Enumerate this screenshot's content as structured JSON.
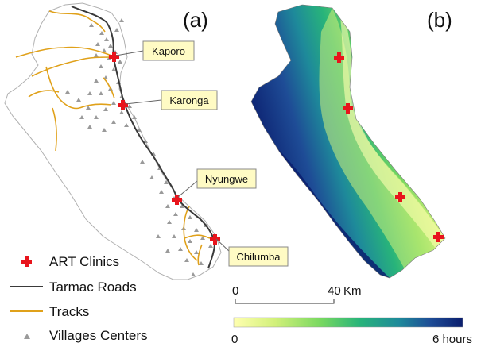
{
  "panels": {
    "a": {
      "label": "(a)"
    },
    "b": {
      "label": "(b)"
    }
  },
  "clinics": [
    "Kaporo",
    "Karonga",
    "Nyungwe",
    "Chilumba"
  ],
  "legend": {
    "clinics": "ART Clinics",
    "tarmac": "Tarmac Roads",
    "tracks": "Tracks",
    "villages": "Villages Centers"
  },
  "scale_bar": {
    "start": "0",
    "end": "40",
    "unit": "Km"
  },
  "colorbar": {
    "min_label": "0",
    "max_label": "6 hours",
    "min_value": 0,
    "max_value": 6,
    "unit": "hours"
  },
  "colors": {
    "clinic": "#e8141c",
    "tarmac": "#3a3a3a",
    "tracks": "#e0a11a",
    "villages": "#9a9a9a",
    "callout_bg": "#fffbc4",
    "outline": "#b0b0b0",
    "ramp": [
      "#ffffb0",
      "#d2f07a",
      "#78d860",
      "#28b47a",
      "#1e8a9a",
      "#1e4c96",
      "#0b1e6e"
    ]
  }
}
